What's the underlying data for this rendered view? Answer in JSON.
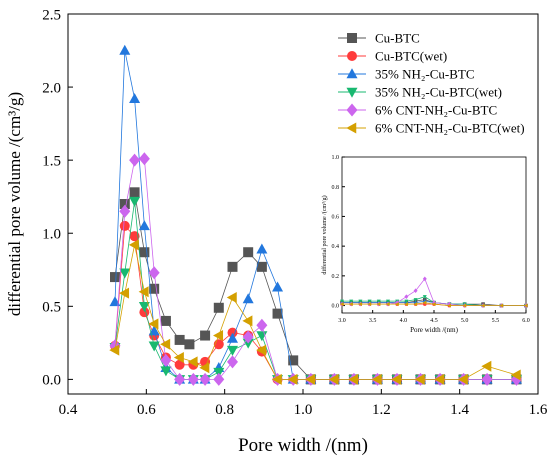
{
  "chart_data": [
    {
      "type": "line",
      "xlabel": "Pore width /(nm)",
      "ylabel": "differential pore volume /(cm³/g)",
      "xlim": [
        0.4,
        1.6
      ],
      "ylim": [
        -0.1,
        2.5
      ],
      "xticks": [
        "0.4",
        "0.6",
        "0.8",
        "1.0",
        "1.2",
        "1.4",
        "1.6"
      ],
      "yticks": [
        "0.0",
        "0.5",
        "1.0",
        "1.5",
        "2.0",
        "2.5"
      ],
      "xtick_values": [
        0.4,
        0.6,
        0.8,
        1.0,
        1.2,
        1.4,
        1.6
      ],
      "ytick_values": [
        0.0,
        0.5,
        1.0,
        1.5,
        2.0,
        2.5
      ],
      "legend_position": "top-right",
      "series": [
        {
          "name": "Cu-BTC",
          "color": "#555555",
          "marker": "square",
          "points": [
            [
              0.52,
              0.7
            ],
            [
              0.545,
              1.2
            ],
            [
              0.57,
              1.28
            ],
            [
              0.595,
              0.87
            ],
            [
              0.62,
              0.62
            ],
            [
              0.65,
              0.4
            ],
            [
              0.685,
              0.27
            ],
            [
              0.71,
              0.24
            ],
            [
              0.75,
              0.3
            ],
            [
              0.785,
              0.49
            ],
            [
              0.82,
              0.77
            ],
            [
              0.86,
              0.87
            ],
            [
              0.895,
              0.77
            ],
            [
              0.935,
              0.45
            ],
            [
              0.975,
              0.13
            ],
            [
              1.02,
              0.0
            ],
            [
              1.08,
              0.0
            ],
            [
              1.13,
              0.0
            ],
            [
              1.19,
              0.0
            ],
            [
              1.24,
              0.0
            ],
            [
              1.3,
              0.0
            ],
            [
              1.35,
              0.0
            ],
            [
              1.41,
              0.0
            ],
            [
              1.47,
              0.0
            ],
            [
              1.545,
              0.0
            ]
          ]
        },
        {
          "name": "Cu-BTC(wet)",
          "color": "#ff3b3b",
          "marker": "circle",
          "points": [
            [
              0.52,
              0.23
            ],
            [
              0.545,
              1.05
            ],
            [
              0.57,
              0.98
            ],
            [
              0.595,
              0.46
            ],
            [
              0.62,
              0.3
            ],
            [
              0.65,
              0.15
            ],
            [
              0.685,
              0.1
            ],
            [
              0.72,
              0.1
            ],
            [
              0.75,
              0.12
            ],
            [
              0.785,
              0.24
            ],
            [
              0.82,
              0.32
            ],
            [
              0.86,
              0.3
            ],
            [
              0.895,
              0.19
            ],
            [
              0.935,
              0.0
            ],
            [
              0.975,
              0.0
            ],
            [
              1.02,
              0.0
            ],
            [
              1.08,
              0.0
            ],
            [
              1.13,
              0.0
            ],
            [
              1.19,
              0.0
            ],
            [
              1.24,
              0.0
            ],
            [
              1.3,
              0.0
            ],
            [
              1.35,
              0.0
            ],
            [
              1.41,
              0.0
            ],
            [
              1.47,
              0.0
            ],
            [
              1.545,
              0.0
            ]
          ]
        },
        {
          "name": "35% NH₂-Cu-BTC",
          "color": "#2277dd",
          "marker": "triangle-up",
          "points": [
            [
              0.52,
              0.53
            ],
            [
              0.545,
              2.25
            ],
            [
              0.57,
              1.92
            ],
            [
              0.595,
              1.05
            ],
            [
              0.62,
              0.33
            ],
            [
              0.65,
              0.08
            ],
            [
              0.685,
              0.0
            ],
            [
              0.72,
              0.0
            ],
            [
              0.75,
              0.0
            ],
            [
              0.785,
              0.08
            ],
            [
              0.82,
              0.28
            ],
            [
              0.86,
              0.55
            ],
            [
              0.895,
              0.89
            ],
            [
              0.935,
              0.63
            ],
            [
              0.975,
              0.0
            ],
            [
              1.02,
              0.0
            ],
            [
              1.08,
              0.0
            ],
            [
              1.13,
              0.0
            ],
            [
              1.19,
              0.0
            ],
            [
              1.24,
              0.0
            ],
            [
              1.3,
              0.0
            ],
            [
              1.35,
              0.0
            ],
            [
              1.41,
              0.0
            ],
            [
              1.47,
              0.0
            ],
            [
              1.545,
              0.0
            ]
          ]
        },
        {
          "name": "35% NH₂-Cu-BTC(wet)",
          "color": "#18b870",
          "marker": "triangle-down",
          "points": [
            [
              0.52,
              0.22
            ],
            [
              0.545,
              0.73
            ],
            [
              0.57,
              1.22
            ],
            [
              0.595,
              0.5
            ],
            [
              0.62,
              0.23
            ],
            [
              0.65,
              0.06
            ],
            [
              0.685,
              0.0
            ],
            [
              0.72,
              0.0
            ],
            [
              0.75,
              0.0
            ],
            [
              0.785,
              0.05
            ],
            [
              0.82,
              0.2
            ],
            [
              0.86,
              0.25
            ],
            [
              0.895,
              0.3
            ],
            [
              0.935,
              0.0
            ],
            [
              0.975,
              0.0
            ],
            [
              1.02,
              0.0
            ],
            [
              1.08,
              0.0
            ],
            [
              1.13,
              0.0
            ],
            [
              1.19,
              0.0
            ],
            [
              1.24,
              0.0
            ],
            [
              1.3,
              0.0
            ],
            [
              1.35,
              0.0
            ],
            [
              1.41,
              0.0
            ],
            [
              1.47,
              0.0
            ],
            [
              1.545,
              0.0
            ]
          ]
        },
        {
          "name": "6% CNT-NH₂-Cu-BTC",
          "color": "#cc66ee",
          "marker": "diamond",
          "points": [
            [
              0.52,
              0.23
            ],
            [
              0.545,
              1.15
            ],
            [
              0.57,
              1.5
            ],
            [
              0.595,
              1.51
            ],
            [
              0.62,
              0.73
            ],
            [
              0.65,
              0.13
            ],
            [
              0.685,
              0.0
            ],
            [
              0.72,
              0.0
            ],
            [
              0.75,
              0.0
            ],
            [
              0.785,
              0.0
            ],
            [
              0.82,
              0.12
            ],
            [
              0.86,
              0.29
            ],
            [
              0.895,
              0.37
            ],
            [
              0.935,
              0.0
            ],
            [
              0.975,
              0.0
            ],
            [
              1.02,
              0.0
            ],
            [
              1.08,
              0.0
            ],
            [
              1.13,
              0.0
            ],
            [
              1.19,
              0.0
            ],
            [
              1.24,
              0.0
            ],
            [
              1.3,
              0.0
            ],
            [
              1.35,
              0.0
            ],
            [
              1.41,
              0.0
            ],
            [
              1.47,
              0.0
            ],
            [
              1.545,
              0.0
            ]
          ]
        },
        {
          "name": "6% CNT-NH₂-Cu-BTC(wet)",
          "color": "#d4a000",
          "marker": "triangle-left",
          "points": [
            [
              0.52,
              0.2
            ],
            [
              0.545,
              0.59
            ],
            [
              0.57,
              0.92
            ],
            [
              0.595,
              0.6
            ],
            [
              0.62,
              0.38
            ],
            [
              0.65,
              0.24
            ],
            [
              0.685,
              0.15
            ],
            [
              0.72,
              0.12
            ],
            [
              0.75,
              0.08
            ],
            [
              0.785,
              0.3
            ],
            [
              0.82,
              0.56
            ],
            [
              0.86,
              0.4
            ],
            [
              0.895,
              0.2
            ],
            [
              0.935,
              0.0
            ],
            [
              0.975,
              0.0
            ],
            [
              1.02,
              0.0
            ],
            [
              1.08,
              0.0
            ],
            [
              1.13,
              0.0
            ],
            [
              1.19,
              0.0
            ],
            [
              1.24,
              0.0
            ],
            [
              1.3,
              0.0
            ],
            [
              1.35,
              0.0
            ],
            [
              1.41,
              0.0
            ],
            [
              1.47,
              0.09
            ],
            [
              1.545,
              0.03
            ]
          ]
        }
      ]
    },
    {
      "type": "line",
      "xlabel": "Pore width /(nm)",
      "ylabel": "differential pore volume /(cm³/g)",
      "xlim": [
        3.0,
        6.0
      ],
      "ylim": [
        -0.05,
        1.0
      ],
      "xticks": [
        "3.0",
        "3.5",
        "4.0",
        "4.5",
        "5.0",
        "5.5",
        "6.0"
      ],
      "yticks": [
        "0.0",
        "0.2",
        "0.4",
        "0.6",
        "0.8",
        "1.0"
      ],
      "xtick_values": [
        3.0,
        3.5,
        4.0,
        4.5,
        5.0,
        5.5,
        6.0
      ],
      "ytick_values": [
        0.0,
        0.2,
        0.4,
        0.6,
        0.8,
        1.0
      ],
      "series": [
        {
          "name": "Cu-BTC",
          "color": "#555555",
          "marker": "square",
          "points": [
            [
              3.0,
              0.02
            ],
            [
              3.15,
              0.02
            ],
            [
              3.3,
              0.02
            ],
            [
              3.45,
              0.02
            ],
            [
              3.6,
              0.02
            ],
            [
              3.75,
              0.02
            ],
            [
              3.9,
              0.02
            ],
            [
              4.05,
              0.02
            ],
            [
              4.2,
              0.03
            ],
            [
              4.35,
              0.04
            ],
            [
              4.5,
              0.02
            ],
            [
              4.75,
              0.01
            ],
            [
              5.0,
              0.01
            ],
            [
              5.3,
              0.01
            ],
            [
              5.6,
              0.0
            ],
            [
              6.0,
              0.0
            ]
          ]
        },
        {
          "name": "Cu-BTC(wet)",
          "color": "#ff3b3b",
          "marker": "circle",
          "points": [
            [
              3.0,
              0.01
            ],
            [
              3.15,
              0.01
            ],
            [
              3.3,
              0.01
            ],
            [
              3.45,
              0.01
            ],
            [
              3.6,
              0.01
            ],
            [
              3.75,
              0.01
            ],
            [
              3.9,
              0.01
            ],
            [
              4.05,
              0.01
            ],
            [
              4.2,
              0.01
            ],
            [
              4.35,
              0.01
            ],
            [
              4.5,
              0.01
            ],
            [
              4.75,
              0.0
            ],
            [
              5.0,
              0.0
            ],
            [
              5.3,
              0.0
            ],
            [
              5.6,
              0.0
            ],
            [
              6.0,
              0.0
            ]
          ]
        },
        {
          "name": "35% NH₂-Cu-BTC",
          "color": "#2277dd",
          "marker": "triangle-up",
          "points": [
            [
              3.0,
              0.02
            ],
            [
              3.15,
              0.02
            ],
            [
              3.3,
              0.02
            ],
            [
              3.45,
              0.02
            ],
            [
              3.6,
              0.02
            ],
            [
              3.75,
              0.02
            ],
            [
              3.9,
              0.02
            ],
            [
              4.05,
              0.02
            ],
            [
              4.2,
              0.02
            ],
            [
              4.35,
              0.03
            ],
            [
              4.5,
              0.02
            ],
            [
              4.75,
              0.01
            ],
            [
              5.0,
              0.01
            ],
            [
              5.3,
              0.0
            ],
            [
              5.6,
              0.0
            ],
            [
              6.0,
              0.0
            ]
          ]
        },
        {
          "name": "35% NH₂-Cu-BTC(wet)",
          "color": "#18b870",
          "marker": "triangle-down",
          "points": [
            [
              3.0,
              0.03
            ],
            [
              3.15,
              0.03
            ],
            [
              3.3,
              0.03
            ],
            [
              3.45,
              0.03
            ],
            [
              3.6,
              0.03
            ],
            [
              3.75,
              0.03
            ],
            [
              3.9,
              0.03
            ],
            [
              4.05,
              0.03
            ],
            [
              4.2,
              0.04
            ],
            [
              4.35,
              0.06
            ],
            [
              4.5,
              0.02
            ],
            [
              4.75,
              0.01
            ],
            [
              5.0,
              0.01
            ],
            [
              5.3,
              0.0
            ],
            [
              5.6,
              0.0
            ],
            [
              6.0,
              0.0
            ]
          ]
        },
        {
          "name": "6% CNT-NH₂-Cu-BTC",
          "color": "#cc66ee",
          "marker": "diamond",
          "points": [
            [
              3.0,
              0.01
            ],
            [
              3.15,
              0.01
            ],
            [
              3.3,
              0.01
            ],
            [
              3.45,
              0.01
            ],
            [
              3.6,
              0.01
            ],
            [
              3.75,
              0.01
            ],
            [
              3.9,
              0.02
            ],
            [
              4.05,
              0.06
            ],
            [
              4.2,
              0.1
            ],
            [
              4.35,
              0.18
            ],
            [
              4.5,
              0.02
            ],
            [
              4.75,
              0.01
            ],
            [
              5.0,
              0.0
            ],
            [
              5.3,
              0.0
            ],
            [
              5.6,
              0.0
            ],
            [
              6.0,
              0.0
            ]
          ]
        },
        {
          "name": "6% CNT-NH₂-Cu-BTC(wet)",
          "color": "#d4a000",
          "marker": "triangle-left",
          "points": [
            [
              3.0,
              0.01
            ],
            [
              3.15,
              0.01
            ],
            [
              3.3,
              0.01
            ],
            [
              3.45,
              0.01
            ],
            [
              3.6,
              0.01
            ],
            [
              3.75,
              0.01
            ],
            [
              3.9,
              0.01
            ],
            [
              4.05,
              0.01
            ],
            [
              4.2,
              0.01
            ],
            [
              4.35,
              0.02
            ],
            [
              4.5,
              0.01
            ],
            [
              4.75,
              0.0
            ],
            [
              5.0,
              0.0
            ],
            [
              5.3,
              0.0
            ],
            [
              5.6,
              0.0
            ],
            [
              6.0,
              0.0
            ]
          ]
        }
      ]
    }
  ]
}
